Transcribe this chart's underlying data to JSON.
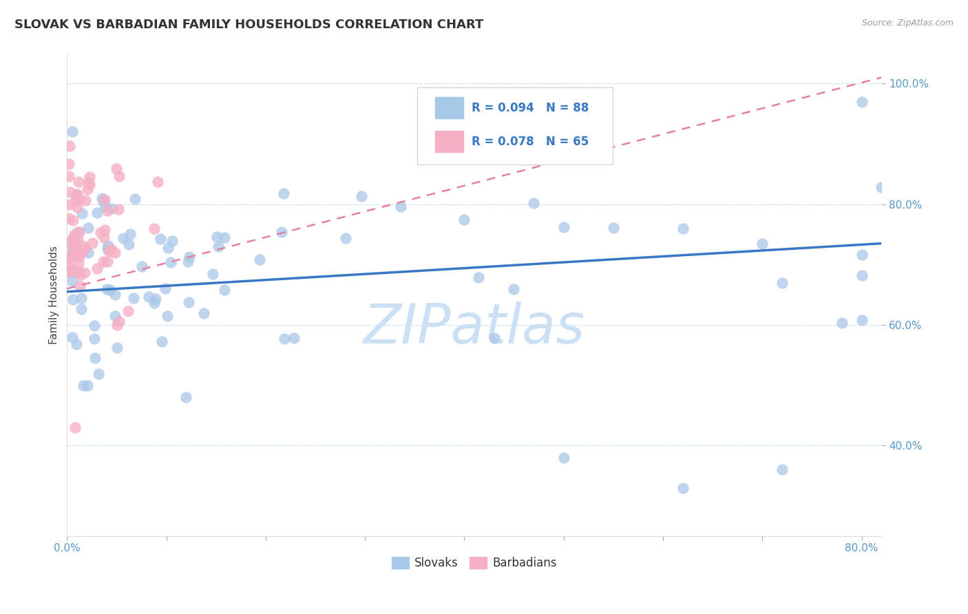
{
  "title": "SLOVAK VS BARBADIAN FAMILY HOUSEHOLDS CORRELATION CHART",
  "source_text": "Source: ZipAtlas.com",
  "ylabel": "Family Households",
  "xlim": [
    0.0,
    0.82
  ],
  "ylim": [
    0.25,
    1.05
  ],
  "yticks": [
    0.4,
    0.6,
    0.8,
    1.0
  ],
  "ytick_labels": [
    "40.0%",
    "60.0%",
    "80.0%",
    "100.0%"
  ],
  "xtick_left_label": "0.0%",
  "xtick_right_label": "80.0%",
  "xtick_left_val": 0.0,
  "xtick_right_val": 0.8,
  "legend_r_slovak": "R = 0.094",
  "legend_n_slovak": "N = 88",
  "legend_r_barbadian": "R = 0.078",
  "legend_n_barbadian": "N = 65",
  "slovak_color": "#a8c8e8",
  "barbadian_color": "#f5b0c5",
  "slovak_line_color": "#3878c5",
  "barbadian_line_color": "#e87fa0",
  "title_fontsize": 13,
  "axis_label_fontsize": 11,
  "tick_fontsize": 11,
  "tick_color": "#5599cc",
  "grid_color": "#c8ddf0",
  "watermark_color": "#cce0f5",
  "background_color": "#ffffff",
  "slovak_line_x0": 0.0,
  "slovak_line_y0": 0.655,
  "slovak_line_x1": 0.82,
  "slovak_line_y1": 0.735,
  "barbadian_line_x0": 0.0,
  "barbadian_line_y0": 0.66,
  "barbadian_line_x1": 0.82,
  "barbadian_line_y1": 1.01
}
